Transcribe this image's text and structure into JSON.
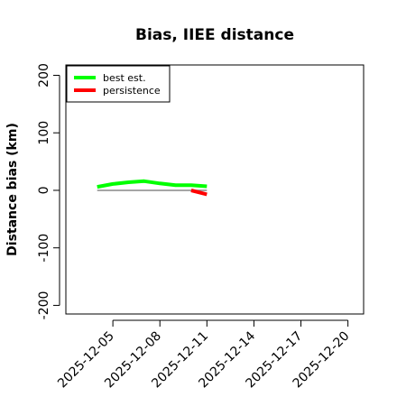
{
  "chart_data": {
    "type": "line",
    "title": "Bias, IIEE distance",
    "xlabel": "",
    "ylabel": "Distance bias (km)",
    "x_tick_labels": [
      "2025-12-05",
      "2025-12-08",
      "2025-12-11",
      "2025-12-14",
      "2025-12-17",
      "2025-12-20"
    ],
    "x_tick_positions": [
      "2025-12-05",
      "2025-12-08",
      "2025-12-11",
      "2025-12-14",
      "2025-12-17",
      "2025-12-20"
    ],
    "xlim": [
      "2025-12-02",
      "2025-12-21"
    ],
    "y_ticks": [
      -200,
      -100,
      0,
      100,
      200
    ],
    "y_tick_labels": [
      "-200",
      "-100",
      "0",
      "100",
      "200"
    ],
    "ylim": [
      -215,
      218
    ],
    "zero_line": {
      "x": [
        "2025-12-04",
        "2025-12-11"
      ],
      "y": 0,
      "color": "#888888"
    },
    "series": [
      {
        "name": "best est.",
        "color": "#00ff00",
        "x": [
          "2025-12-04",
          "2025-12-05",
          "2025-12-06",
          "2025-12-07",
          "2025-12-08",
          "2025-12-09",
          "2025-12-10",
          "2025-12-11"
        ],
        "y": [
          6,
          11,
          14,
          16,
          12,
          9,
          9,
          7
        ]
      },
      {
        "name": "persistence",
        "color": "#ff0000",
        "x": [
          "2025-12-10",
          "2025-12-11"
        ],
        "y": [
          0,
          -7
        ]
      }
    ],
    "legend": {
      "position": "top-left",
      "entries": [
        "best est.",
        "persistence"
      ]
    },
    "grid": false
  }
}
